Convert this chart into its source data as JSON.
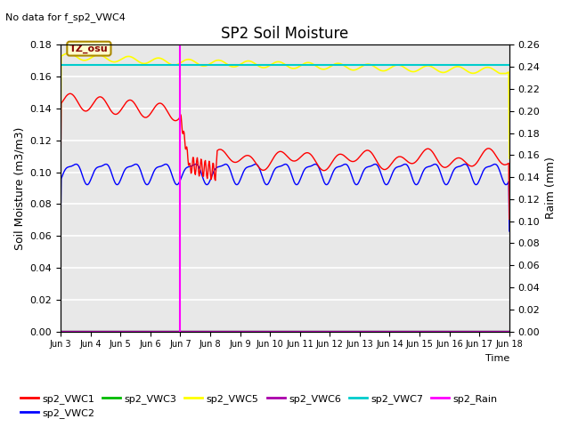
{
  "title": "SP2 Soil Moisture",
  "top_left_text": "No data for f_sp2_VWC4",
  "ylabel_left": "Soil Moisture (m3/m3)",
  "ylabel_right": "Raim (mm)",
  "xlabel": "Time",
  "ylim_left": [
    0.0,
    0.18
  ],
  "ylim_right": [
    0.0,
    0.26
  ],
  "yticks_left": [
    0.0,
    0.02,
    0.04,
    0.06,
    0.08,
    0.1,
    0.12,
    0.14,
    0.16,
    0.18
  ],
  "yticks_right": [
    0.0,
    0.02,
    0.04,
    0.06,
    0.08,
    0.1,
    0.12,
    0.14,
    0.16,
    0.18,
    0.2,
    0.22,
    0.24,
    0.26
  ],
  "xtick_labels": [
    "Jun 3",
    "Jun 4",
    "Jun 5",
    "Jun 6",
    "Jun 7",
    "Jun 8",
    "Jun 9",
    "Jun 10",
    "Jun 11",
    "Jun 12",
    "Jun 13",
    "Jun 14",
    "Jun 15",
    "Jun 16",
    "Jun 17",
    "Jun 18"
  ],
  "vline_x": 4.0,
  "vline_color": "#FF00FF",
  "tz_osu_label": "TZ_osu",
  "tz_osu_bg": "#FFFFCC",
  "tz_osu_border": "#AA8800",
  "tz_osu_text_color": "#880000",
  "colors": {
    "sp2_VWC1": "#FF0000",
    "sp2_VWC2": "#0000FF",
    "sp2_VWC3": "#00BB00",
    "sp2_VWC5": "#FFFF00",
    "sp2_VWC6": "#AA00AA",
    "sp2_VWC7": "#00CCCC",
    "sp2_Rain": "#FF00FF"
  },
  "background_color": "#E8E8E8",
  "grid_color": "#FFFFFF",
  "fig_width": 6.4,
  "fig_height": 4.8,
  "fig_dpi": 100
}
